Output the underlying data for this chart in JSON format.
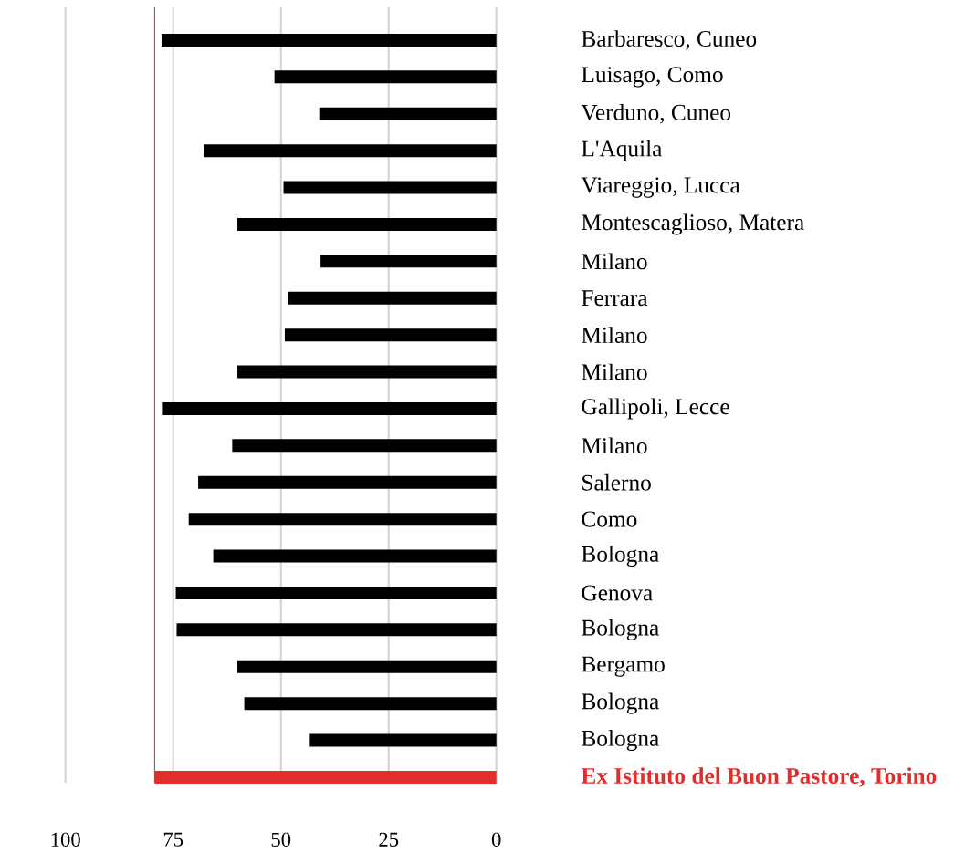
{
  "chart_data": {
    "type": "bar",
    "orientation": "horizontal",
    "categories": [
      "Barbaresco, Cuneo",
      "Luisago, Como",
      "Verduno, Cuneo",
      "L'Aquila",
      "Viareggio, Lucca",
      "Montescaglioso, Matera",
      "Milano",
      "Ferrara",
      "Milano",
      "Milano",
      "Gallipoli, Lecce",
      "Milano",
      "Salerno",
      "Como",
      "Bologna",
      "Genova",
      "Bologna",
      "Bergamo",
      "Bologna",
      "Bologna",
      "Ex Istituto del Buon Pastore, Torino"
    ],
    "values": [
      77.7,
      51.5,
      41.1,
      67.8,
      49.4,
      60.1,
      40.8,
      48.3,
      49.1,
      60.1,
      77.4,
      61.3,
      69.2,
      71.4,
      65.7,
      74.4,
      74.2,
      60.1,
      58.5,
      43.3,
      79.3
    ],
    "colors": [
      "#000000",
      "#000000",
      "#000000",
      "#000000",
      "#000000",
      "#000000",
      "#000000",
      "#000000",
      "#000000",
      "#000000",
      "#000000",
      "#000000",
      "#000000",
      "#000000",
      "#000000",
      "#000000",
      "#000000",
      "#000000",
      "#000000",
      "#000000",
      "#e32d2d"
    ],
    "xlim": [
      100,
      0
    ],
    "xticks": [
      100,
      75,
      50,
      25,
      0
    ],
    "grid": "x",
    "ref_lines": [
      {
        "axis": "x",
        "value": 79.3,
        "color": "#e83030"
      }
    ]
  }
}
